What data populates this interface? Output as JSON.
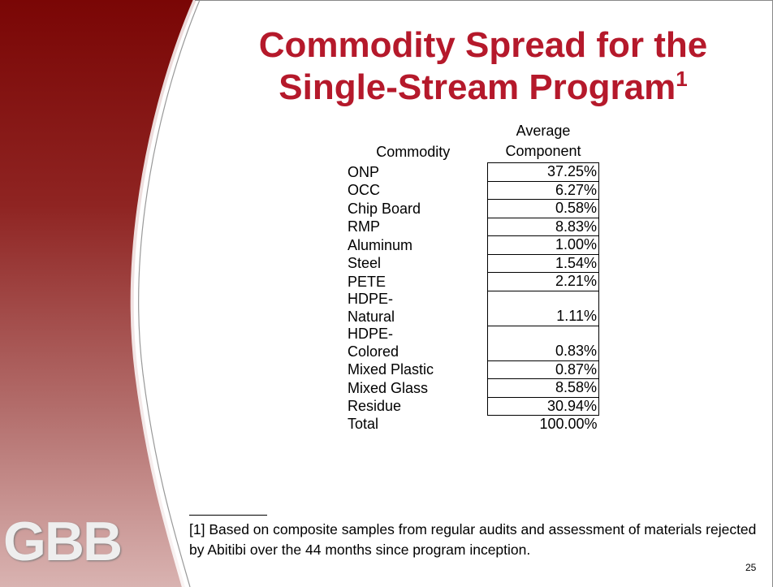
{
  "slide": {
    "title": {
      "line1": "Commodity Spread for the",
      "line2": "Single-Stream Program",
      "footnote_mark": "1"
    },
    "table": {
      "header": {
        "commodity": "Commodity",
        "average_line1": "Average",
        "average_line2": "Component"
      },
      "rows": [
        [
          "ONP",
          "37.25%"
        ],
        [
          "OCC",
          "6.27%"
        ],
        [
          "Chip Board",
          "0.58%"
        ],
        [
          "RMP",
          "8.83%"
        ],
        [
          "Aluminum",
          "1.00%"
        ],
        [
          "Steel",
          "1.54%"
        ],
        [
          "PETE",
          "2.21%"
        ],
        [
          "HDPE-Natural",
          "1.11%"
        ],
        [
          "HDPE-Colored",
          "0.83%"
        ],
        [
          "Mixed Plastic",
          "0.87%"
        ],
        [
          "Mixed Glass",
          "8.58%"
        ],
        [
          "Residue",
          "30.94%"
        ]
      ],
      "total": [
        "Total",
        "100.00%"
      ]
    },
    "footnote": "[1] Based on composite samples from regular audits and assessment of materials rejected by Abitibi over the 44 months since program inception.",
    "logo": "GBB",
    "page_number": "25"
  }
}
